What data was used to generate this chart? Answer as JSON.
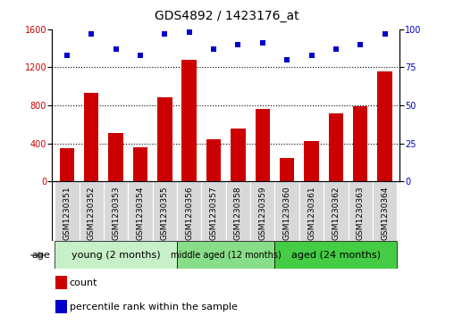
{
  "title": "GDS4892 / 1423176_at",
  "samples": [
    "GSM1230351",
    "GSM1230352",
    "GSM1230353",
    "GSM1230354",
    "GSM1230355",
    "GSM1230356",
    "GSM1230357",
    "GSM1230358",
    "GSM1230359",
    "GSM1230360",
    "GSM1230361",
    "GSM1230362",
    "GSM1230363",
    "GSM1230364"
  ],
  "counts": [
    350,
    930,
    510,
    360,
    880,
    1280,
    440,
    560,
    760,
    250,
    420,
    720,
    790,
    1160
  ],
  "percentiles": [
    83,
    97,
    87,
    83,
    97,
    98,
    87,
    90,
    91,
    80,
    83,
    87,
    90,
    97
  ],
  "bar_color": "#cc0000",
  "dot_color": "#0000cc",
  "ylim_left": [
    0,
    1600
  ],
  "ylim_right": [
    0,
    100
  ],
  "yticks_left": [
    0,
    400,
    800,
    1200,
    1600
  ],
  "yticks_right": [
    0,
    25,
    50,
    75,
    100
  ],
  "groups": [
    {
      "label": "young (2 months)",
      "start": 0,
      "end": 5,
      "color": "#c8f0c8"
    },
    {
      "label": "middle aged (12 months)",
      "start": 5,
      "end": 9,
      "color": "#88dd88"
    },
    {
      "label": "aged (24 months)",
      "start": 9,
      "end": 14,
      "color": "#44cc44"
    }
  ],
  "age_label": "age",
  "legend_count_label": "count",
  "legend_pct_label": "percentile rank within the sample",
  "background_color": "#ffffff",
  "plot_bg_color": "#ffffff",
  "title_fontsize": 10,
  "tick_fontsize": 7,
  "xtick_fontsize": 6.5,
  "label_fontsize": 8
}
